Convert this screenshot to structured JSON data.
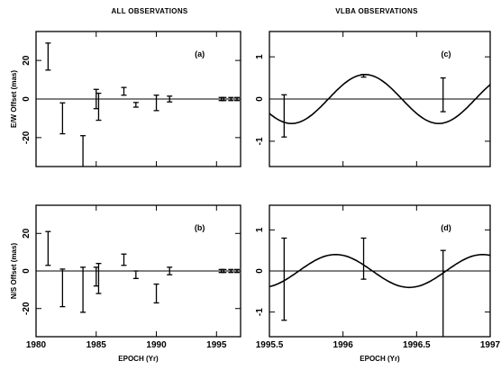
{
  "column_titles": {
    "left": "ALL OBSERVATIONS",
    "right": "VLBA OBSERVATIONS"
  },
  "chart_data": [
    {
      "id": "a",
      "type": "scatter",
      "panel_label": "(a)",
      "ylabel": "E/W Offset (mas)",
      "xlabel": "",
      "xlim": [
        1980,
        1997
      ],
      "ylim": [
        -35,
        35
      ],
      "xticks": [
        1980,
        1985,
        1990,
        1995
      ],
      "xtick_labels": [
        "",
        "",
        "",
        ""
      ],
      "yticks": [
        -20,
        0,
        20
      ],
      "ytick_labels": [
        "-20",
        "0",
        "20"
      ],
      "zero_line": true,
      "points": [
        {
          "x": 1981.0,
          "y": 22,
          "err": 7
        },
        {
          "x": 1982.2,
          "y": -10,
          "err": 8
        },
        {
          "x": 1983.9,
          "y": -30,
          "err": 11
        },
        {
          "x": 1985.0,
          "y": 0,
          "err": 5
        },
        {
          "x": 1985.2,
          "y": -4,
          "err": 7
        },
        {
          "x": 1987.3,
          "y": 4,
          "err": 2
        },
        {
          "x": 1988.3,
          "y": -3,
          "err": 1.2
        },
        {
          "x": 1990.0,
          "y": -2,
          "err": 4
        },
        {
          "x": 1991.1,
          "y": 0,
          "err": 1.5
        },
        {
          "x": 1995.4,
          "y": 0,
          "err": 0.8
        },
        {
          "x": 1995.6,
          "y": 0,
          "err": 0.8
        },
        {
          "x": 1996.2,
          "y": 0,
          "err": 0.8
        },
        {
          "x": 1996.7,
          "y": 0,
          "err": 0.8
        }
      ]
    },
    {
      "id": "b",
      "type": "scatter",
      "panel_label": "(b)",
      "ylabel": "N/S Offset (mas)",
      "xlabel": "EPOCH (Yr)",
      "xlim": [
        1980,
        1997
      ],
      "ylim": [
        -35,
        35
      ],
      "xticks": [
        1980,
        1985,
        1990,
        1995
      ],
      "xtick_labels": [
        "1980",
        "1985",
        "1990",
        "1995"
      ],
      "yticks": [
        -20,
        0,
        20
      ],
      "ytick_labels": [
        "-20",
        "0",
        "20"
      ],
      "zero_line": true,
      "points": [
        {
          "x": 1981.0,
          "y": 12,
          "err": 9
        },
        {
          "x": 1982.2,
          "y": -9,
          "err": 10
        },
        {
          "x": 1983.9,
          "y": -10,
          "err": 12
        },
        {
          "x": 1985.0,
          "y": -3,
          "err": 5
        },
        {
          "x": 1985.2,
          "y": -4,
          "err": 8
        },
        {
          "x": 1987.3,
          "y": 6,
          "err": 3
        },
        {
          "x": 1988.3,
          "y": -2,
          "err": 2
        },
        {
          "x": 1990.0,
          "y": -12,
          "err": 5
        },
        {
          "x": 1991.1,
          "y": 0,
          "err": 2
        },
        {
          "x": 1995.4,
          "y": 0,
          "err": 0.8
        },
        {
          "x": 1995.6,
          "y": 0,
          "err": 0.8
        },
        {
          "x": 1996.2,
          "y": 0,
          "err": 0.8
        },
        {
          "x": 1996.7,
          "y": 0,
          "err": 0.8
        }
      ]
    },
    {
      "id": "c",
      "type": "scatter",
      "panel_label": "(c)",
      "ylabel": "",
      "xlabel": "",
      "xlim": [
        1995.5,
        1997
      ],
      "ylim": [
        -1.6,
        1.6
      ],
      "xticks": [
        1995.5,
        1996,
        1996.5,
        1997
      ],
      "xtick_labels": [
        "",
        "",
        "",
        ""
      ],
      "yticks": [
        -1,
        0,
        1
      ],
      "ytick_labels": [
        "-1",
        "0",
        "1"
      ],
      "zero_line": true,
      "points": [
        {
          "x": 1995.6,
          "y": -0.4,
          "err": 0.5
        },
        {
          "x": 1996.14,
          "y": 0.55,
          "err": 0.03
        },
        {
          "x": 1996.68,
          "y": 0.1,
          "err": 0.4
        }
      ],
      "model": {
        "type": "sinusoid",
        "amplitude": 0.58,
        "period": 1.0,
        "peak_epoch": 1996.15
      }
    },
    {
      "id": "d",
      "type": "scatter",
      "panel_label": "(d)",
      "ylabel": "",
      "xlabel": "EPOCH (Yr)",
      "xlim": [
        1995.5,
        1997
      ],
      "ylim": [
        -1.6,
        1.6
      ],
      "xticks": [
        1995.5,
        1996,
        1996.5,
        1997
      ],
      "xtick_labels": [
        "1995.5",
        "1996",
        "1996.5",
        "1997"
      ],
      "yticks": [
        -1,
        0,
        1
      ],
      "ytick_labels": [
        "-1",
        "0",
        "1"
      ],
      "zero_line": true,
      "points": [
        {
          "x": 1995.6,
          "y": -0.2,
          "err": 1.0
        },
        {
          "x": 1996.14,
          "y": 0.3,
          "err": 0.5
        },
        {
          "x": 1996.68,
          "y": -0.6,
          "err": 1.1
        }
      ],
      "model": {
        "type": "sinusoid",
        "amplitude": 0.4,
        "period": 1.0,
        "peak_epoch": 1995.95
      }
    }
  ]
}
